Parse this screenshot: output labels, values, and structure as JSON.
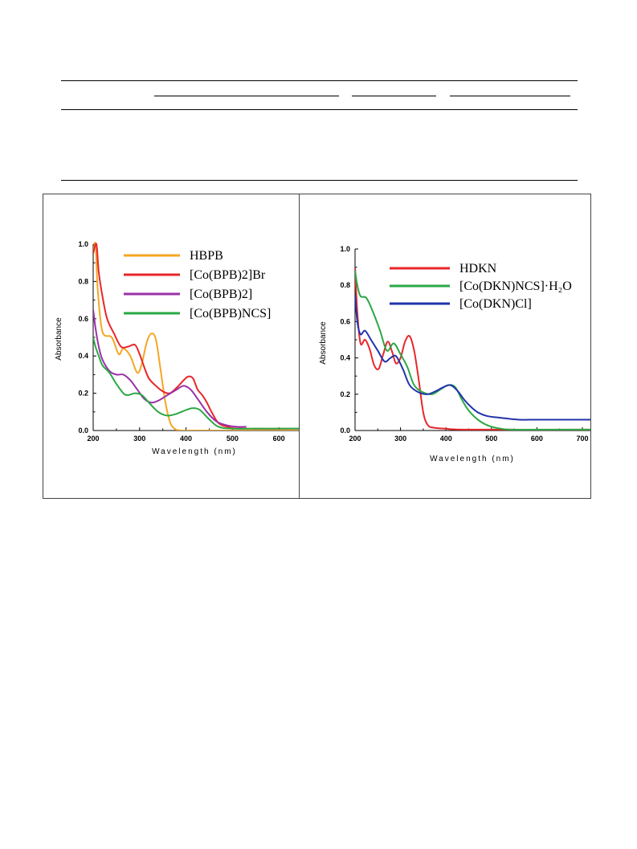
{
  "chart_data": [
    {
      "type": "line",
      "xlabel": "Wavelength (nm)",
      "ylabel": "Absorbance",
      "xlim": [
        200,
        650
      ],
      "ylim": [
        0.0,
        1.0
      ],
      "xticks": [
        200,
        300,
        400,
        500,
        600
      ],
      "xtick_labels": [
        "200",
        "300",
        "400",
        "500",
        "600"
      ],
      "yticks": [
        0.0,
        0.2,
        0.4,
        0.6,
        0.8,
        1.0
      ],
      "ytick_labels": [
        "0.0",
        "0.2",
        "0.4",
        "0.6",
        "0.8",
        "1.0"
      ],
      "legend_position": "top-right",
      "grid": false,
      "series": [
        {
          "name": "HBPB",
          "color": "#f5a623",
          "x": [
            200,
            205,
            210,
            220,
            240,
            255,
            265,
            280,
            295,
            305,
            315,
            325,
            335,
            345,
            355,
            365,
            375,
            390,
            420,
            500,
            650
          ],
          "y": [
            0.95,
            1.0,
            0.75,
            0.53,
            0.5,
            0.41,
            0.44,
            0.4,
            0.31,
            0.36,
            0.47,
            0.52,
            0.49,
            0.33,
            0.16,
            0.05,
            0.01,
            0.0,
            0.0,
            0.0,
            0.0
          ]
        },
        {
          "name": "[Co(BPB)2]Br",
          "color": "#e8262a",
          "x": [
            200,
            207,
            212,
            220,
            230,
            245,
            260,
            275,
            290,
            300,
            310,
            320,
            335,
            350,
            365,
            380,
            395,
            405,
            415,
            425,
            435,
            445,
            455,
            470,
            490,
            520,
            650
          ],
          "y": [
            0.95,
            1.0,
            0.85,
            0.72,
            0.6,
            0.52,
            0.45,
            0.45,
            0.46,
            0.41,
            0.34,
            0.28,
            0.24,
            0.21,
            0.2,
            0.23,
            0.27,
            0.29,
            0.28,
            0.22,
            0.19,
            0.15,
            0.1,
            0.04,
            0.02,
            0.01,
            0.01
          ]
        },
        {
          "name": "[Co(BPB)2]",
          "color": "#9b30a8",
          "x": [
            200,
            205,
            212,
            220,
            235,
            250,
            265,
            280,
            295,
            310,
            325,
            340,
            360,
            380,
            395,
            410,
            425,
            445,
            465,
            485,
            510,
            530
          ],
          "y": [
            0.65,
            0.55,
            0.45,
            0.38,
            0.32,
            0.3,
            0.3,
            0.27,
            0.22,
            0.17,
            0.15,
            0.16,
            0.19,
            0.22,
            0.24,
            0.22,
            0.17,
            0.1,
            0.05,
            0.03,
            0.02,
            0.02
          ]
        },
        {
          "name": "[Co(BPB)NCS]",
          "color": "#2aa844",
          "x": [
            200,
            205,
            212,
            220,
            235,
            250,
            265,
            275,
            290,
            305,
            320,
            340,
            360,
            380,
            400,
            415,
            430,
            450,
            470,
            500,
            550,
            600,
            650
          ],
          "y": [
            0.5,
            0.45,
            0.4,
            0.35,
            0.31,
            0.25,
            0.2,
            0.19,
            0.2,
            0.19,
            0.15,
            0.1,
            0.08,
            0.09,
            0.11,
            0.12,
            0.11,
            0.06,
            0.02,
            0.01,
            0.01,
            0.01,
            0.01
          ]
        }
      ],
      "legend": [
        "HBPB",
        "[Co(BPB)2]Br",
        "[Co(BPB)2]",
        "[Co(BPB)NCS]"
      ]
    },
    {
      "type": "line",
      "xlabel": "Wavelength (nm)",
      "ylabel": "Absorbance",
      "xlim": [
        200,
        730
      ],
      "ylim": [
        0.0,
        1.0
      ],
      "xticks": [
        200,
        300,
        400,
        500,
        600,
        700
      ],
      "xtick_labels": [
        "200",
        "300",
        "400",
        "500",
        "600",
        "700"
      ],
      "yticks": [
        0.0,
        0.2,
        0.4,
        0.6,
        0.8,
        1.0
      ],
      "ytick_labels": [
        "0.0",
        "0.2",
        "0.4",
        "0.6",
        "0.8",
        "1.0"
      ],
      "legend_position": "top-right",
      "grid": false,
      "series": [
        {
          "name": "HDKN",
          "color": "#e8262a",
          "x": [
            200,
            205,
            212,
            222,
            232,
            242,
            252,
            262,
            272,
            282,
            290,
            300,
            310,
            320,
            330,
            340,
            350,
            360,
            375,
            400,
            450,
            730
          ],
          "y": [
            0.9,
            0.65,
            0.48,
            0.5,
            0.45,
            0.36,
            0.34,
            0.42,
            0.49,
            0.43,
            0.37,
            0.4,
            0.49,
            0.52,
            0.44,
            0.28,
            0.1,
            0.03,
            0.015,
            0.01,
            0.005,
            0.005
          ]
        },
        {
          "name": "[Co(DKN)NCS]·H2O",
          "color": "#2aa844",
          "x": [
            200,
            205,
            212,
            225,
            240,
            255,
            270,
            285,
            300,
            315,
            330,
            350,
            370,
            390,
            405,
            420,
            435,
            450,
            470,
            490,
            510,
            540,
            600,
            730
          ],
          "y": [
            0.88,
            0.8,
            0.74,
            0.73,
            0.65,
            0.55,
            0.44,
            0.48,
            0.42,
            0.35,
            0.25,
            0.21,
            0.2,
            0.23,
            0.25,
            0.24,
            0.17,
            0.11,
            0.06,
            0.03,
            0.015,
            0.005,
            0.005,
            0.005
          ]
        },
        {
          "name": "[Co(DKN)Cl]",
          "color": "#2233aa",
          "x": [
            200,
            205,
            212,
            222,
            235,
            250,
            265,
            278,
            290,
            305,
            320,
            340,
            360,
            380,
            395,
            410,
            425,
            440,
            455,
            470,
            490,
            520,
            560,
            600,
            650,
            730
          ],
          "y": [
            0.75,
            0.6,
            0.53,
            0.55,
            0.5,
            0.44,
            0.38,
            0.4,
            0.41,
            0.34,
            0.25,
            0.21,
            0.2,
            0.22,
            0.24,
            0.25,
            0.22,
            0.17,
            0.13,
            0.1,
            0.08,
            0.07,
            0.06,
            0.06,
            0.06,
            0.06
          ]
        }
      ],
      "legend": [
        "HDKN",
        "[Co(DKN)NCS]·H₂O",
        "[Co(DKN)Cl]"
      ]
    }
  ]
}
